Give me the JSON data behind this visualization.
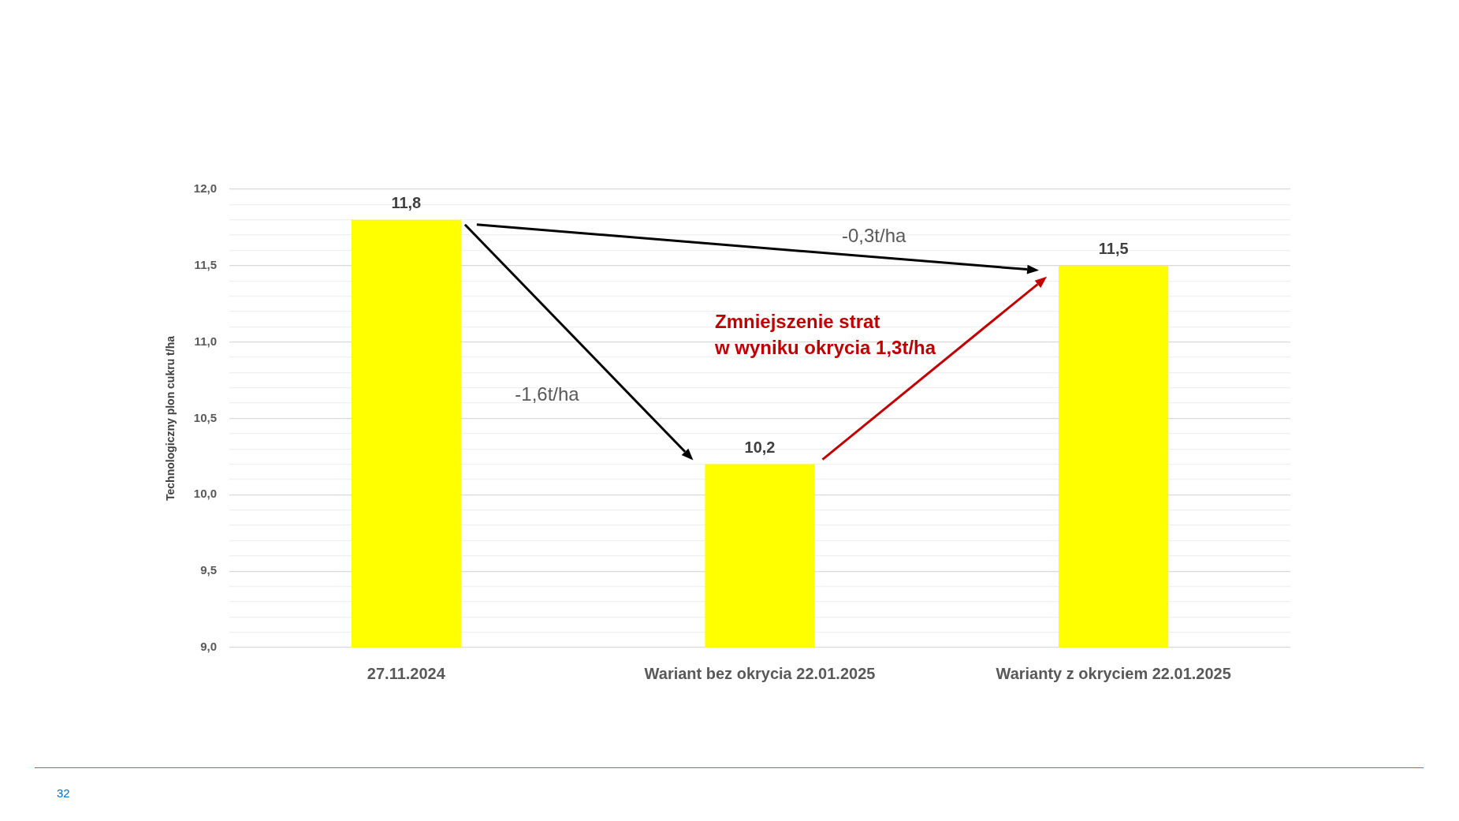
{
  "chart_data": {
    "type": "bar",
    "ylabel": "Technologiczny plon cukru t/ha",
    "categories": [
      "27.11.2024",
      "Wariant bez okrycia 22.01.2025",
      "Warianty z okryciem 22.01.2025"
    ],
    "values": [
      11.8,
      10.2,
      11.5
    ],
    "value_labels": [
      "11,8",
      "10,2",
      "11,5"
    ],
    "color": "#ffff00",
    "ylim": [
      9,
      12
    ],
    "yticks": [
      {
        "value": 9,
        "label": "9,0"
      },
      {
        "value": 9.1,
        "label": null
      },
      {
        "value": 9.2,
        "label": null
      },
      {
        "value": 9.3,
        "label": null
      },
      {
        "value": 9.4,
        "label": null
      },
      {
        "value": 9.5,
        "label": "9,5"
      },
      {
        "value": 9.6,
        "label": null
      },
      {
        "value": 9.7,
        "label": null
      },
      {
        "value": 9.8,
        "label": null
      },
      {
        "value": 9.9,
        "label": null
      },
      {
        "value": 10,
        "label": "10,0"
      },
      {
        "value": 10.1,
        "label": null
      },
      {
        "value": 10.2,
        "label": null
      },
      {
        "value": 10.3,
        "label": null
      },
      {
        "value": 10.4,
        "label": null
      },
      {
        "value": 10.5,
        "label": "10,5"
      },
      {
        "value": 10.6,
        "label": null
      },
      {
        "value": 10.7,
        "label": null
      },
      {
        "value": 10.8,
        "label": null
      },
      {
        "value": 10.9,
        "label": null
      },
      {
        "value": 11,
        "label": "11,0"
      },
      {
        "value": 11.1,
        "label": null
      },
      {
        "value": 11.2,
        "label": null
      },
      {
        "value": 11.3,
        "label": null
      },
      {
        "value": 11.4,
        "label": null
      },
      {
        "value": 11.5,
        "label": "11,5"
      },
      {
        "value": 11.6,
        "label": null
      },
      {
        "value": 11.7,
        "label": null
      },
      {
        "value": 11.8,
        "label": null
      },
      {
        "value": 11.9,
        "label": null
      },
      {
        "value": 12,
        "label": "12,0"
      }
    ],
    "grid": true,
    "legend": false,
    "annotations": [
      "-0,3t/ha",
      "-1,6t/ha",
      "Zmniejszenie strat\nw wyniku okrycia 1,3t/ha",
      "32"
    ]
  }
}
